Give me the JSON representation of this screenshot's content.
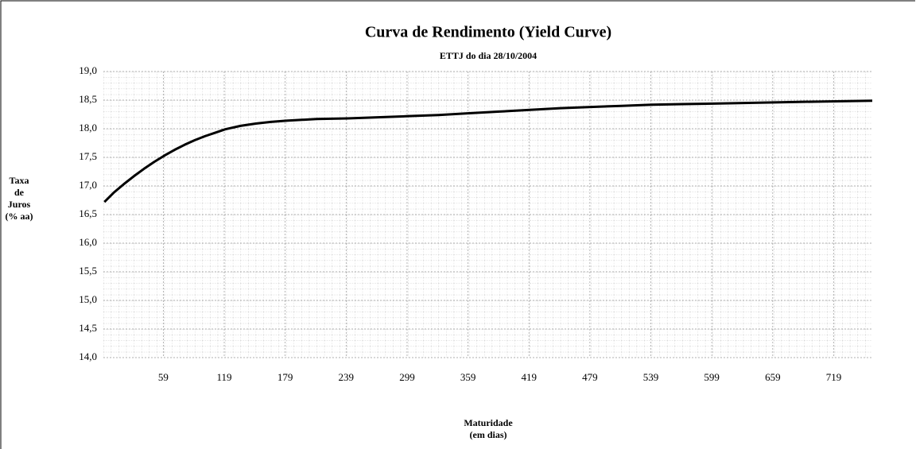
{
  "chart_data": {
    "type": "line",
    "title": "Curva de Rendimento (Yield Curve)",
    "subtitle": "ETTJ do dia 28/10/2004",
    "ylabel": [
      "Taxa",
      "de",
      "Juros",
      "(% aa)"
    ],
    "xlabel": [
      "Maturidade",
      "(em dias)"
    ],
    "x": [
      1,
      10,
      20,
      30,
      40,
      50,
      60,
      70,
      80,
      90,
      100,
      110,
      120,
      135,
      150,
      165,
      180,
      210,
      240,
      270,
      300,
      330,
      360,
      390,
      420,
      450,
      480,
      510,
      540,
      570,
      600,
      630,
      660,
      690,
      720,
      757
    ],
    "values": [
      16.72,
      16.88,
      17.03,
      17.17,
      17.3,
      17.42,
      17.53,
      17.63,
      17.72,
      17.8,
      17.87,
      17.93,
      17.99,
      18.05,
      18.09,
      18.12,
      18.14,
      18.17,
      18.18,
      18.2,
      18.22,
      18.24,
      18.27,
      18.3,
      18.33,
      18.36,
      18.38,
      18.4,
      18.42,
      18.43,
      18.44,
      18.45,
      18.46,
      18.47,
      18.48,
      18.49
    ],
    "color": "#000000",
    "xlim": [
      0,
      757
    ],
    "xticks": [
      59,
      119,
      179,
      239,
      299,
      359,
      419,
      479,
      539,
      599,
      659,
      719
    ],
    "ylim": [
      14,
      19
    ],
    "yticks": [
      {
        "value": 14,
        "label": "14,0"
      },
      {
        "value": 14.5,
        "label": "14,5"
      },
      {
        "value": 15,
        "label": "15,0"
      },
      {
        "value": 15.5,
        "label": "15,5"
      },
      {
        "value": 16,
        "label": "16,0"
      },
      {
        "value": 16.5,
        "label": "16,5"
      },
      {
        "value": 17,
        "label": "17,0"
      },
      {
        "value": 17.5,
        "label": "17,5"
      },
      {
        "value": 18,
        "label": "18,0"
      },
      {
        "value": 18.5,
        "label": "18,5"
      },
      {
        "value": 19,
        "label": "19,0"
      }
    ],
    "grid": true
  }
}
